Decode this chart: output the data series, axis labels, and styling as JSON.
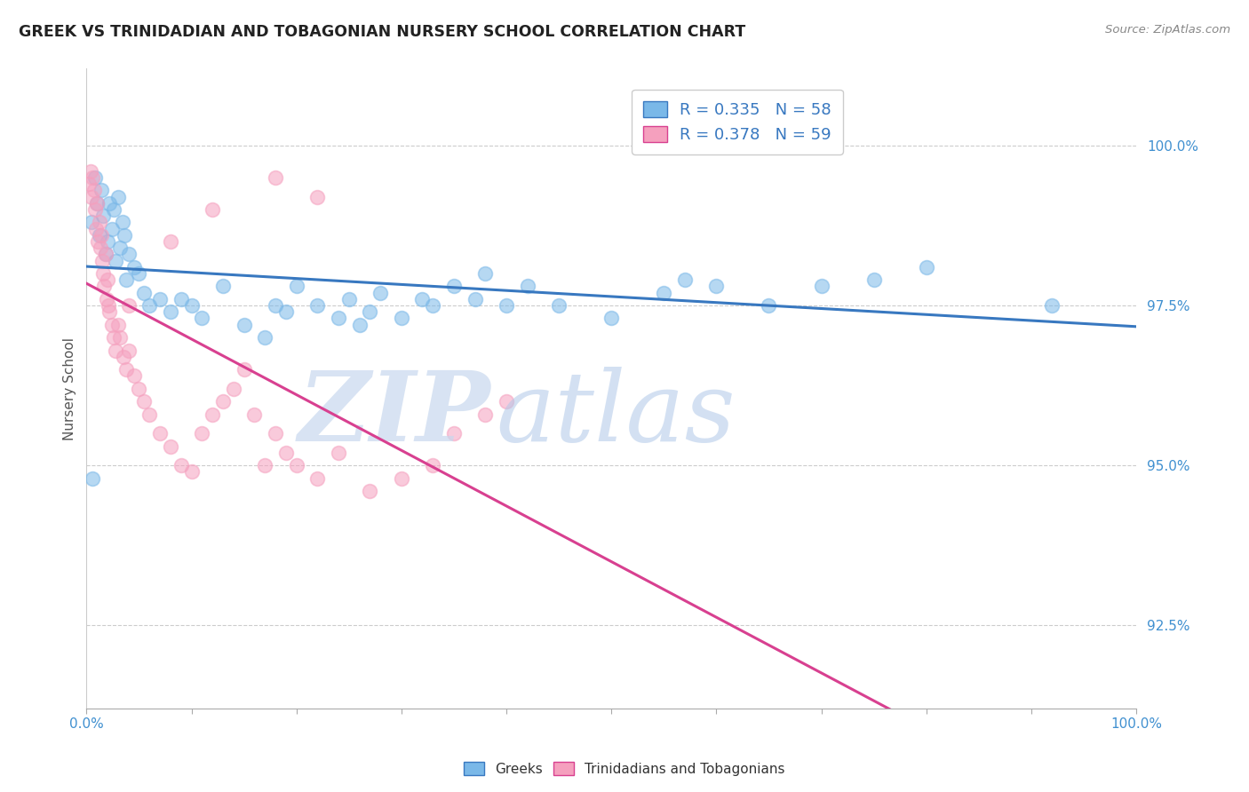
{
  "title": "GREEK VS TRINIDADIAN AND TOBAGONIAN NURSERY SCHOOL CORRELATION CHART",
  "source": "Source: ZipAtlas.com",
  "ylabel": "Nursery School",
  "yticks": [
    92.5,
    95.0,
    97.5,
    100.0
  ],
  "ytick_labels": [
    "92.5%",
    "95.0%",
    "97.5%",
    "100.0%"
  ],
  "xmin": 0.0,
  "xmax": 100.0,
  "ymin": 91.2,
  "ymax": 101.2,
  "greek_R": 0.335,
  "greek_N": 58,
  "trint_R": 0.378,
  "trint_N": 59,
  "legend_labels": [
    "Greeks",
    "Trinidadians and Tobagonians"
  ],
  "blue_color": "#7ab8e8",
  "pink_color": "#f5a0be",
  "blue_line_color": "#3878c0",
  "pink_line_color": "#d84090",
  "watermark_zip_color": "#c8d8ee",
  "watermark_atlas_color": "#b0c8e8",
  "background": "#ffffff",
  "greek_x": [
    0.5,
    0.8,
    1.0,
    1.2,
    1.4,
    1.6,
    1.8,
    2.0,
    2.2,
    2.4,
    2.6,
    2.8,
    3.0,
    3.2,
    3.4,
    3.6,
    3.8,
    4.0,
    4.5,
    5.0,
    5.5,
    6.0,
    7.0,
    8.0,
    9.0,
    10.0,
    11.0,
    13.0,
    15.0,
    17.0,
    18.0,
    19.0,
    20.0,
    22.0,
    24.0,
    25.0,
    26.0,
    27.0,
    28.0,
    30.0,
    32.0,
    33.0,
    35.0,
    37.0,
    38.0,
    40.0,
    42.0,
    45.0,
    50.0,
    55.0,
    57.0,
    60.0,
    65.0,
    70.0,
    75.0,
    80.0,
    92.0,
    0.6
  ],
  "greek_y": [
    98.8,
    99.5,
    99.1,
    98.6,
    99.3,
    98.9,
    98.3,
    98.5,
    99.1,
    98.7,
    99.0,
    98.2,
    99.2,
    98.4,
    98.8,
    98.6,
    97.9,
    98.3,
    98.1,
    98.0,
    97.7,
    97.5,
    97.6,
    97.4,
    97.6,
    97.5,
    97.3,
    97.8,
    97.2,
    97.0,
    97.5,
    97.4,
    97.8,
    97.5,
    97.3,
    97.6,
    97.2,
    97.4,
    97.7,
    97.3,
    97.6,
    97.5,
    97.8,
    97.6,
    98.0,
    97.5,
    97.8,
    97.5,
    97.3,
    97.7,
    97.9,
    97.8,
    97.5,
    97.8,
    97.9,
    98.1,
    97.5,
    94.8
  ],
  "trint_x": [
    0.2,
    0.4,
    0.5,
    0.6,
    0.7,
    0.8,
    0.9,
    1.0,
    1.1,
    1.2,
    1.3,
    1.4,
    1.5,
    1.6,
    1.7,
    1.8,
    1.9,
    2.0,
    2.1,
    2.2,
    2.4,
    2.6,
    2.8,
    3.0,
    3.2,
    3.5,
    3.8,
    4.0,
    4.5,
    5.0,
    5.5,
    6.0,
    7.0,
    8.0,
    9.0,
    10.0,
    11.0,
    12.0,
    13.0,
    14.0,
    15.0,
    16.0,
    17.0,
    18.0,
    19.0,
    20.0,
    22.0,
    24.0,
    27.0,
    30.0,
    33.0,
    35.0,
    38.0,
    40.0,
    22.0,
    18.0,
    12.0,
    8.0,
    4.0
  ],
  "trint_y": [
    99.4,
    99.6,
    99.2,
    99.5,
    99.3,
    99.0,
    98.7,
    99.1,
    98.5,
    98.8,
    98.4,
    98.6,
    98.2,
    98.0,
    97.8,
    98.3,
    97.6,
    97.9,
    97.5,
    97.4,
    97.2,
    97.0,
    96.8,
    97.2,
    97.0,
    96.7,
    96.5,
    96.8,
    96.4,
    96.2,
    96.0,
    95.8,
    95.5,
    95.3,
    95.0,
    94.9,
    95.5,
    95.8,
    96.0,
    96.2,
    96.5,
    95.8,
    95.0,
    95.5,
    95.2,
    95.0,
    94.8,
    95.2,
    94.6,
    94.8,
    95.0,
    95.5,
    95.8,
    96.0,
    99.2,
    99.5,
    99.0,
    98.5,
    97.5
  ]
}
